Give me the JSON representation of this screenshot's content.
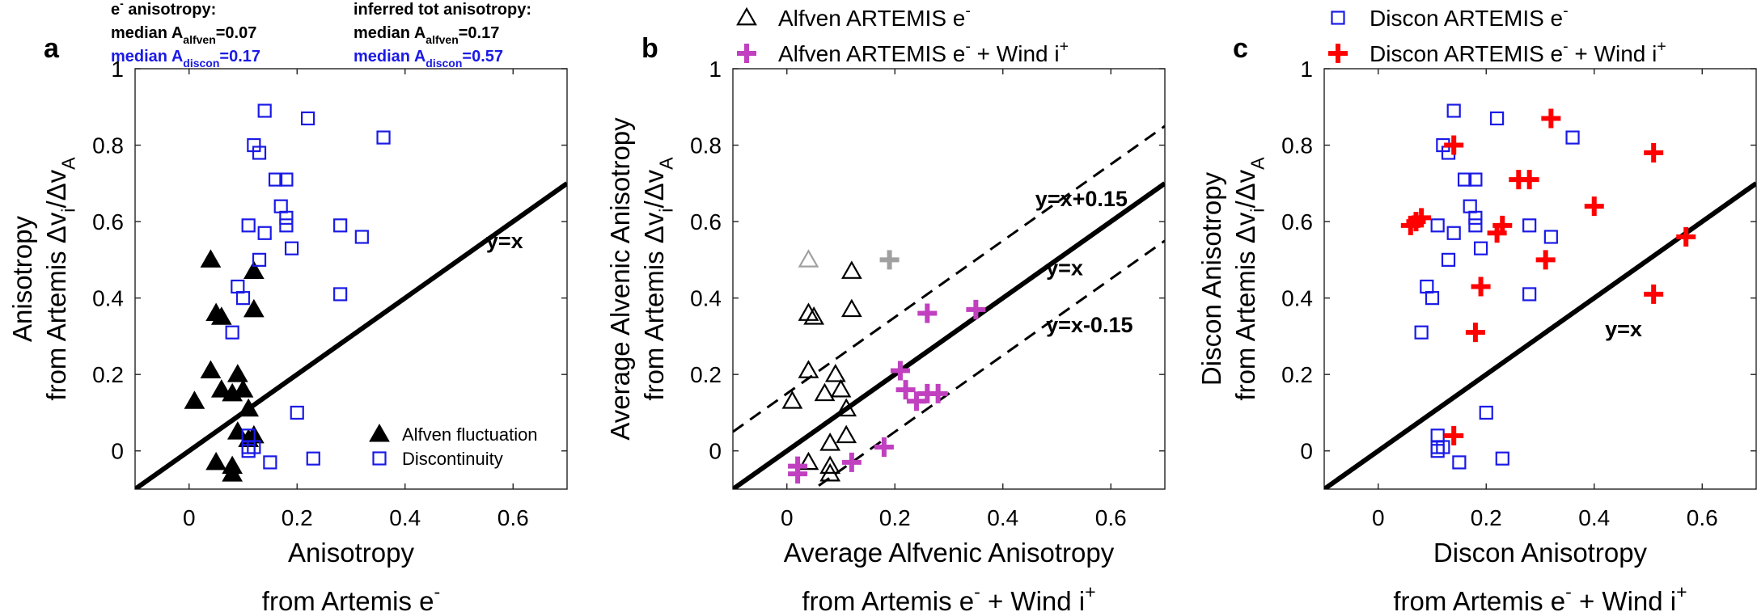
{
  "colors": {
    "blue": "#1a1ae6",
    "black": "#000000",
    "magenta": "#c040c0",
    "red": "#ff0000",
    "gray": "#a0a0a0"
  },
  "chart_data": [
    {
      "type": "scatter",
      "panel_label": "a",
      "xlabel_lines": [
        [
          {
            "t": "Anisotropy"
          }
        ],
        [
          {
            "t": "from Artemis e"
          },
          {
            "t": "-",
            "sup": true
          }
        ]
      ],
      "ylabel_lines": [
        [
          {
            "t": "Anisotropy"
          }
        ],
        [
          {
            "t": "from Artemis Δv"
          },
          {
            "t": "i",
            "sub": true
          },
          {
            "t": "/Δv"
          },
          {
            "t": "A",
            "sub": true
          }
        ]
      ],
      "xlim": [
        -0.1,
        0.7
      ],
      "ylim": [
        -0.1,
        1
      ],
      "xticks": [
        {
          "v": 0,
          "label": "0"
        },
        {
          "v": 0.2,
          "label": "0.2"
        },
        {
          "v": 0.4,
          "label": "0.4"
        },
        {
          "v": 0.6,
          "label": "0.6"
        }
      ],
      "yticks": [
        {
          "v": 0,
          "label": "0"
        },
        {
          "v": 0.2,
          "label": "0.2"
        },
        {
          "v": 0.4,
          "label": "0.4"
        },
        {
          "v": 0.6,
          "label": "0.6"
        },
        {
          "v": 0.8,
          "label": "0.8"
        },
        {
          "v": 1,
          "label": "1"
        }
      ],
      "lines": [
        {
          "offset": 0,
          "dash": false,
          "width": 6,
          "label": "y=x",
          "label_at": [
            0.55,
            0.53
          ]
        }
      ],
      "header_blocks": [
        {
          "lines": [
            {
              "color": "black",
              "parts": [
                {
                  "t": "e"
                },
                {
                  "t": "-",
                  "sup": true
                },
                {
                  "t": " anisotropy:"
                }
              ]
            },
            {
              "color": "black",
              "parts": [
                {
                  "t": "median A"
                },
                {
                  "t": "alfven",
                  "sub": true
                },
                {
                  "t": "=0.07"
                }
              ]
            },
            {
              "color": "blue",
              "parts": [
                {
                  "t": "median A"
                },
                {
                  "t": "discon",
                  "sub": true
                },
                {
                  "t": "=0.17"
                }
              ]
            }
          ]
        },
        {
          "lines": [
            {
              "color": "black",
              "parts": [
                {
                  "t": "inferred tot anisotropy:"
                }
              ]
            },
            {
              "color": "black",
              "parts": [
                {
                  "t": "median A"
                },
                {
                  "t": "alfven",
                  "sub": true
                },
                {
                  "t": "=0.17"
                }
              ]
            },
            {
              "color": "blue",
              "parts": [
                {
                  "t": "median A"
                },
                {
                  "t": "discon",
                  "sub": true
                },
                {
                  "t": "=0.57"
                }
              ]
            }
          ]
        }
      ],
      "legend": {
        "position": "bottom-right",
        "entries": [
          {
            "marker": "filled-triangle",
            "color": "black",
            "parts": [
              {
                "t": "Alfven fluctuation"
              }
            ]
          },
          {
            "marker": "open-square",
            "color": "blue",
            "parts": [
              {
                "t": "Discontinuity"
              }
            ]
          }
        ]
      },
      "series": [
        {
          "name": "Alfven fluctuation",
          "marker": "filled-triangle",
          "color": "black",
          "points": [
            [
              0.04,
              0.5
            ],
            [
              0.05,
              0.36
            ],
            [
              0.06,
              0.35
            ],
            [
              0.12,
              0.47
            ],
            [
              0.12,
              0.37
            ],
            [
              0.04,
              0.21
            ],
            [
              0.09,
              0.2
            ],
            [
              0.06,
              0.16
            ],
            [
              0.01,
              0.13
            ],
            [
              0.1,
              0.16
            ],
            [
              0.08,
              0.15
            ],
            [
              0.11,
              0.11
            ],
            [
              0.09,
              0.05
            ],
            [
              0.11,
              0.03
            ],
            [
              0.12,
              0.04
            ],
            [
              0.05,
              -0.03
            ],
            [
              0.08,
              -0.04
            ],
            [
              0.08,
              -0.06
            ]
          ]
        },
        {
          "name": "Discontinuity",
          "marker": "open-square",
          "color": "blue",
          "points": [
            [
              0.14,
              0.89
            ],
            [
              0.22,
              0.87
            ],
            [
              0.36,
              0.82
            ],
            [
              0.12,
              0.8
            ],
            [
              0.13,
              0.78
            ],
            [
              0.16,
              0.71
            ],
            [
              0.18,
              0.71
            ],
            [
              0.17,
              0.64
            ],
            [
              0.18,
              0.61
            ],
            [
              0.18,
              0.59
            ],
            [
              0.11,
              0.59
            ],
            [
              0.28,
              0.59
            ],
            [
              0.14,
              0.57
            ],
            [
              0.32,
              0.56
            ],
            [
              0.19,
              0.53
            ],
            [
              0.13,
              0.5
            ],
            [
              0.09,
              0.43
            ],
            [
              0.1,
              0.4
            ],
            [
              0.28,
              0.41
            ],
            [
              0.08,
              0.31
            ],
            [
              0.2,
              0.1
            ],
            [
              0.11,
              0.04
            ],
            [
              0.11,
              0.01
            ],
            [
              0.12,
              0.01
            ],
            [
              0.11,
              0.0
            ],
            [
              0.15,
              -0.03
            ],
            [
              0.23,
              -0.02
            ]
          ]
        }
      ]
    },
    {
      "type": "scatter",
      "panel_label": "b",
      "xlabel_lines": [
        [
          {
            "t": "Average Alfvenic Anisotropy"
          }
        ],
        [
          {
            "t": "from Artemis e"
          },
          {
            "t": "-",
            "sup": true
          },
          {
            "t": " + Wind i"
          },
          {
            "t": "+",
            "sup": true
          }
        ]
      ],
      "ylabel_lines": [
        [
          {
            "t": "Average Alvenic Anisotropy"
          }
        ],
        [
          {
            "t": "from Artemis Δv"
          },
          {
            "t": "i",
            "sub": true
          },
          {
            "t": "/Δv"
          },
          {
            "t": "A",
            "sub": true
          }
        ]
      ],
      "xlim": [
        -0.1,
        0.7
      ],
      "ylim": [
        -0.1,
        1
      ],
      "xticks": [
        {
          "v": 0,
          "label": "0"
        },
        {
          "v": 0.2,
          "label": "0.2"
        },
        {
          "v": 0.4,
          "label": "0.4"
        },
        {
          "v": 0.6,
          "label": "0.6"
        }
      ],
      "yticks": [
        {
          "v": 0,
          "label": "0"
        },
        {
          "v": 0.2,
          "label": "0.2"
        },
        {
          "v": 0.4,
          "label": "0.4"
        },
        {
          "v": 0.6,
          "label": "0.6"
        },
        {
          "v": 0.8,
          "label": "0.8"
        },
        {
          "v": 1,
          "label": "1"
        }
      ],
      "lines": [
        {
          "offset": 0.15,
          "dash": true,
          "width": 3,
          "label": "y=x+0.15",
          "label_at": [
            0.46,
            0.64
          ]
        },
        {
          "offset": 0,
          "dash": false,
          "width": 6,
          "label": "y=x",
          "label_at": [
            0.48,
            0.46
          ]
        },
        {
          "offset": -0.15,
          "dash": true,
          "width": 3,
          "label": "y=x-0.15",
          "label_at": [
            0.48,
            0.31
          ]
        }
      ],
      "header_blocks": [],
      "legend": {
        "position": "top-outside",
        "entries": [
          {
            "marker": "open-triangle",
            "color": "black",
            "parts": [
              {
                "t": "Alfven ARTEMIS e"
              },
              {
                "t": "-",
                "sup": true
              }
            ]
          },
          {
            "marker": "plus",
            "color": "magenta",
            "parts": [
              {
                "t": "Alfven ARTEMIS e"
              },
              {
                "t": "-",
                "sup": true
              },
              {
                "t": " + Wind i"
              },
              {
                "t": "+",
                "sup": true
              }
            ]
          }
        ]
      },
      "series": [
        {
          "name": "Alfven ARTEMIS e-",
          "marker": "open-triangle",
          "color": "black",
          "points": [
            [
              0.12,
              0.47
            ],
            [
              0.12,
              0.37
            ],
            [
              0.04,
              0.36
            ],
            [
              0.05,
              0.35
            ],
            [
              0.04,
              0.21
            ],
            [
              0.09,
              0.2
            ],
            [
              0.1,
              0.16
            ],
            [
              0.07,
              0.15
            ],
            [
              0.01,
              0.13
            ],
            [
              0.11,
              0.11
            ],
            [
              0.11,
              0.04
            ],
            [
              0.08,
              0.02
            ],
            [
              0.04,
              -0.03
            ],
            [
              0.08,
              -0.04
            ],
            [
              0.08,
              -0.06
            ]
          ]
        },
        {
          "name": "Alfven ARTEMIS e- + Wind i+",
          "marker": "plus",
          "color": "magenta",
          "points": [
            [
              0.26,
              0.36
            ],
            [
              0.35,
              0.37
            ],
            [
              0.21,
              0.21
            ],
            [
              0.22,
              0.16
            ],
            [
              0.24,
              0.13
            ],
            [
              0.26,
              0.15
            ],
            [
              0.28,
              0.15
            ],
            [
              0.18,
              0.01
            ],
            [
              0.12,
              -0.03
            ],
            [
              0.02,
              -0.04
            ],
            [
              0.02,
              -0.06
            ]
          ]
        },
        {
          "name": "",
          "marker": "open-triangle",
          "color": "gray",
          "points": [
            [
              0.04,
              0.5
            ]
          ]
        },
        {
          "name": "",
          "marker": "plus",
          "color": "gray",
          "points": [
            [
              0.19,
              0.5
            ]
          ]
        }
      ]
    },
    {
      "type": "scatter",
      "panel_label": "c",
      "xlabel_lines": [
        [
          {
            "t": "Discon Anisotropy"
          }
        ],
        [
          {
            "t": "from Artemis e"
          },
          {
            "t": "-",
            "sup": true
          },
          {
            "t": " + Wind i"
          },
          {
            "t": "+",
            "sup": true
          }
        ]
      ],
      "ylabel_lines": [
        [
          {
            "t": "Discon Anisotropy"
          }
        ],
        [
          {
            "t": "from Artemis Δv"
          },
          {
            "t": "i",
            "sub": true
          },
          {
            "t": "/Δv"
          },
          {
            "t": "A",
            "sub": true
          }
        ]
      ],
      "xlim": [
        -0.1,
        0.7
      ],
      "ylim": [
        -0.1,
        1
      ],
      "xticks": [
        {
          "v": 0,
          "label": "0"
        },
        {
          "v": 0.2,
          "label": "0.2"
        },
        {
          "v": 0.4,
          "label": "0.4"
        },
        {
          "v": 0.6,
          "label": "0.6"
        }
      ],
      "yticks": [
        {
          "v": 0,
          "label": "0"
        },
        {
          "v": 0.2,
          "label": "0.2"
        },
        {
          "v": 0.4,
          "label": "0.4"
        },
        {
          "v": 0.6,
          "label": "0.6"
        },
        {
          "v": 0.8,
          "label": "0.8"
        },
        {
          "v": 1,
          "label": "1"
        }
      ],
      "lines": [
        {
          "offset": 0,
          "dash": false,
          "width": 6,
          "label": "y=x",
          "label_at": [
            0.42,
            0.3
          ]
        }
      ],
      "header_blocks": [],
      "legend": {
        "position": "top-outside",
        "entries": [
          {
            "marker": "open-square",
            "color": "blue",
            "parts": [
              {
                "t": "Discon ARTEMIS e"
              },
              {
                "t": "-",
                "sup": true
              }
            ]
          },
          {
            "marker": "plus",
            "color": "red",
            "parts": [
              {
                "t": "Discon ARTEMIS e"
              },
              {
                "t": "-",
                "sup": true
              },
              {
                "t": " + Wind i"
              },
              {
                "t": "+",
                "sup": true
              }
            ]
          }
        ]
      },
      "series": [
        {
          "name": "Discon ARTEMIS e-",
          "marker": "open-square",
          "color": "blue",
          "points": [
            [
              0.14,
              0.89
            ],
            [
              0.22,
              0.87
            ],
            [
              0.36,
              0.82
            ],
            [
              0.12,
              0.8
            ],
            [
              0.13,
              0.78
            ],
            [
              0.16,
              0.71
            ],
            [
              0.18,
              0.71
            ],
            [
              0.17,
              0.64
            ],
            [
              0.18,
              0.61
            ],
            [
              0.18,
              0.59
            ],
            [
              0.11,
              0.59
            ],
            [
              0.28,
              0.59
            ],
            [
              0.14,
              0.57
            ],
            [
              0.32,
              0.56
            ],
            [
              0.19,
              0.53
            ],
            [
              0.13,
              0.5
            ],
            [
              0.09,
              0.43
            ],
            [
              0.1,
              0.4
            ],
            [
              0.28,
              0.41
            ],
            [
              0.08,
              0.31
            ],
            [
              0.2,
              0.1
            ],
            [
              0.11,
              0.04
            ],
            [
              0.11,
              0.01
            ],
            [
              0.12,
              0.01
            ],
            [
              0.11,
              0.0
            ],
            [
              0.15,
              -0.03
            ],
            [
              0.23,
              -0.02
            ]
          ]
        },
        {
          "name": "Discon ARTEMIS e- + Wind i+",
          "marker": "plus",
          "color": "red",
          "points": [
            [
              0.32,
              0.87
            ],
            [
              0.14,
              0.8
            ],
            [
              0.51,
              0.78
            ],
            [
              0.26,
              0.71
            ],
            [
              0.28,
              0.71
            ],
            [
              0.4,
              0.64
            ],
            [
              0.08,
              0.61
            ],
            [
              0.07,
              0.6
            ],
            [
              0.06,
              0.59
            ],
            [
              0.23,
              0.59
            ],
            [
              0.22,
              0.57
            ],
            [
              0.31,
              0.5
            ],
            [
              0.57,
              0.56
            ],
            [
              0.19,
              0.43
            ],
            [
              0.51,
              0.41
            ],
            [
              0.18,
              0.31
            ],
            [
              0.14,
              0.04
            ]
          ]
        }
      ]
    }
  ]
}
